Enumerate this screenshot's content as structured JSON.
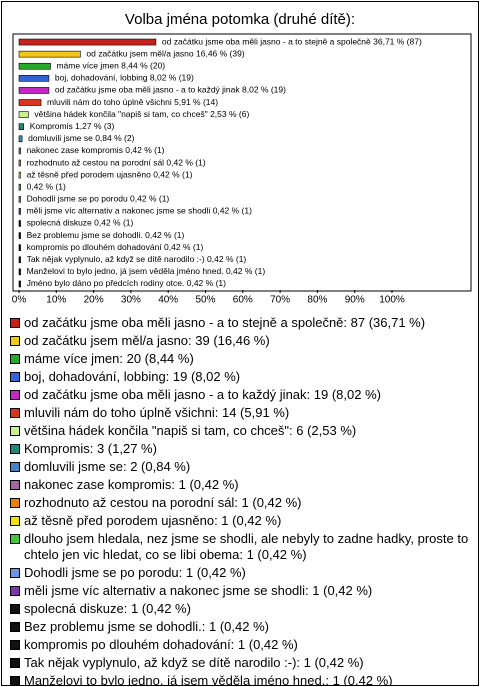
{
  "chart_data": {
    "type": "barh",
    "title": "Volba jména potomka (druhé dítě):",
    "values": [
      36.71,
      16.46,
      8.44,
      8.02,
      8.02,
      5.91,
      2.53,
      1.27,
      0.84,
      0.42,
      0.42,
      0.42,
      0.42,
      0.42,
      0.42,
      0.42,
      0.42,
      0.42,
      0.42,
      0.42,
      0.42
    ],
    "value_labels": [
      "od začátku jsme oba měli jasno - a to stejně a společně 36,71 % (87)",
      "od začátku jsem měl/a jasno 16,46 % (39)",
      "máme více jmen 8,44 % (20)",
      "boj, dohadování, lobbing 8,02 % (19)",
      "od začátku jsme oba měli jasno - a to každý jinak 8,02 % (19)",
      "mluvili nám do toho úplně všichni 5,91 % (14)",
      "většina hádek končila \"napiš si tam, co chceš\" 2,53 % (6)",
      "Kompromis 1,27 % (3)",
      "domluvili jsme se 0,84 % (2)",
      "nakonec zase kompromis 0,42 % (1)",
      "rozhodnuto až cestou na porodní sál 0,42 % (1)",
      "až těsně před porodem ujasněno 0,42 % (1)",
      "0,42 % (1)",
      "Dohodli jsme se po porodu 0,42 % (1)",
      "měli jsme víc alternativ a nakonec jsme se shodli 0,42 % (1)",
      "spolecná diskuze 0,42 % (1)",
      "Bez problemu jsme se dohodli. 0,42 % (1)",
      "kompromis po dlouhém dohadování 0,42 % (1)",
      "Tak nějak vyplynulo, až když se dítě narodilo :-) 0,42 % (1)",
      "Manželovi to bylo jedno, já jsem věděla jméno hned. 0,42 % (1)",
      "Jméno bylo dáno po předcích rodiny otce. 0,42 % (1)"
    ],
    "legend_labels": [
      "od začátku jsme oba měli jasno - a to stejně a společně: 87 (36,71 %)",
      "od začátku jsem měl/a jasno: 39 (16,46 %)",
      "máme více jmen: 20 (8,44 %)",
      "boj, dohadování, lobbing: 19 (8,02 %)",
      "od začátku jsme oba měli jasno - a to každý jinak: 19 (8,02 %)",
      "mluvili nám do toho úplně všichni: 14 (5,91 %)",
      "většina hádek končila \"napiš si tam, co chceš\": 6 (2,53 %)",
      "Kompromis: 3 (1,27 %)",
      "domluvili jsme se: 2 (0,84 %)",
      "nakonec zase kompromis: 1 (0,42 %)",
      "rozhodnuto až cestou na porodní sál: 1 (0,42 %)",
      "až těsně před porodem ujasněno: 1 (0,42 %)",
      "dlouho jsem hledala, nez jsme se shodli, ale nebyly to zadne hadky, proste to chtelo jen vic hledat, co se libi obema: 1 (0,42 %)",
      "Dohodli jsme se po porodu: 1 (0,42 %)",
      "měli jsme víc alternativ a nakonec jsme se shodli: 1 (0,42 %)",
      "spolecná diskuze: 1 (0,42 %)",
      "Bez problemu jsme se dohodli.: 1 (0,42 %)",
      "kompromis po dlouhém dohadování: 1 (0,42 %)",
      "Tak nějak vyplynulo, až když se dítě narodilo :-): 1 (0,42 %)",
      "Manželovi to bylo jedno, já jsem věděla jméno hned.: 1 (0,42 %)",
      "Jméno bylo dáno po předcích rodiny otce.: 1 (0,42 %)"
    ],
    "colors": [
      "#c8201c",
      "#f2c818",
      "#28a828",
      "#3464d4",
      "#c428c4",
      "#d83420",
      "#c8f08c",
      "#208878",
      "#4484c4",
      "#a068a0",
      "#e88010",
      "#f0e010",
      "#40c838",
      "#6c94e4",
      "#7c38a4",
      "#111111",
      "#111111",
      "#111111",
      "#111111",
      "#111111",
      "#111111"
    ],
    "xlim": [
      0,
      100
    ],
    "xticks": [
      {
        "value": 0,
        "label": "0%"
      },
      {
        "value": 10,
        "label": "10%"
      },
      {
        "value": 20,
        "label": "20%"
      },
      {
        "value": 30,
        "label": "30%"
      },
      {
        "value": 40,
        "label": "40%"
      },
      {
        "value": 50,
        "label": "50%"
      },
      {
        "value": 60,
        "label": "60%"
      },
      {
        "value": 70,
        "label": "70%"
      },
      {
        "value": 80,
        "label": "80%"
      },
      {
        "value": 90,
        "label": "90%"
      },
      {
        "value": 100,
        "label": "100%"
      }
    ]
  }
}
